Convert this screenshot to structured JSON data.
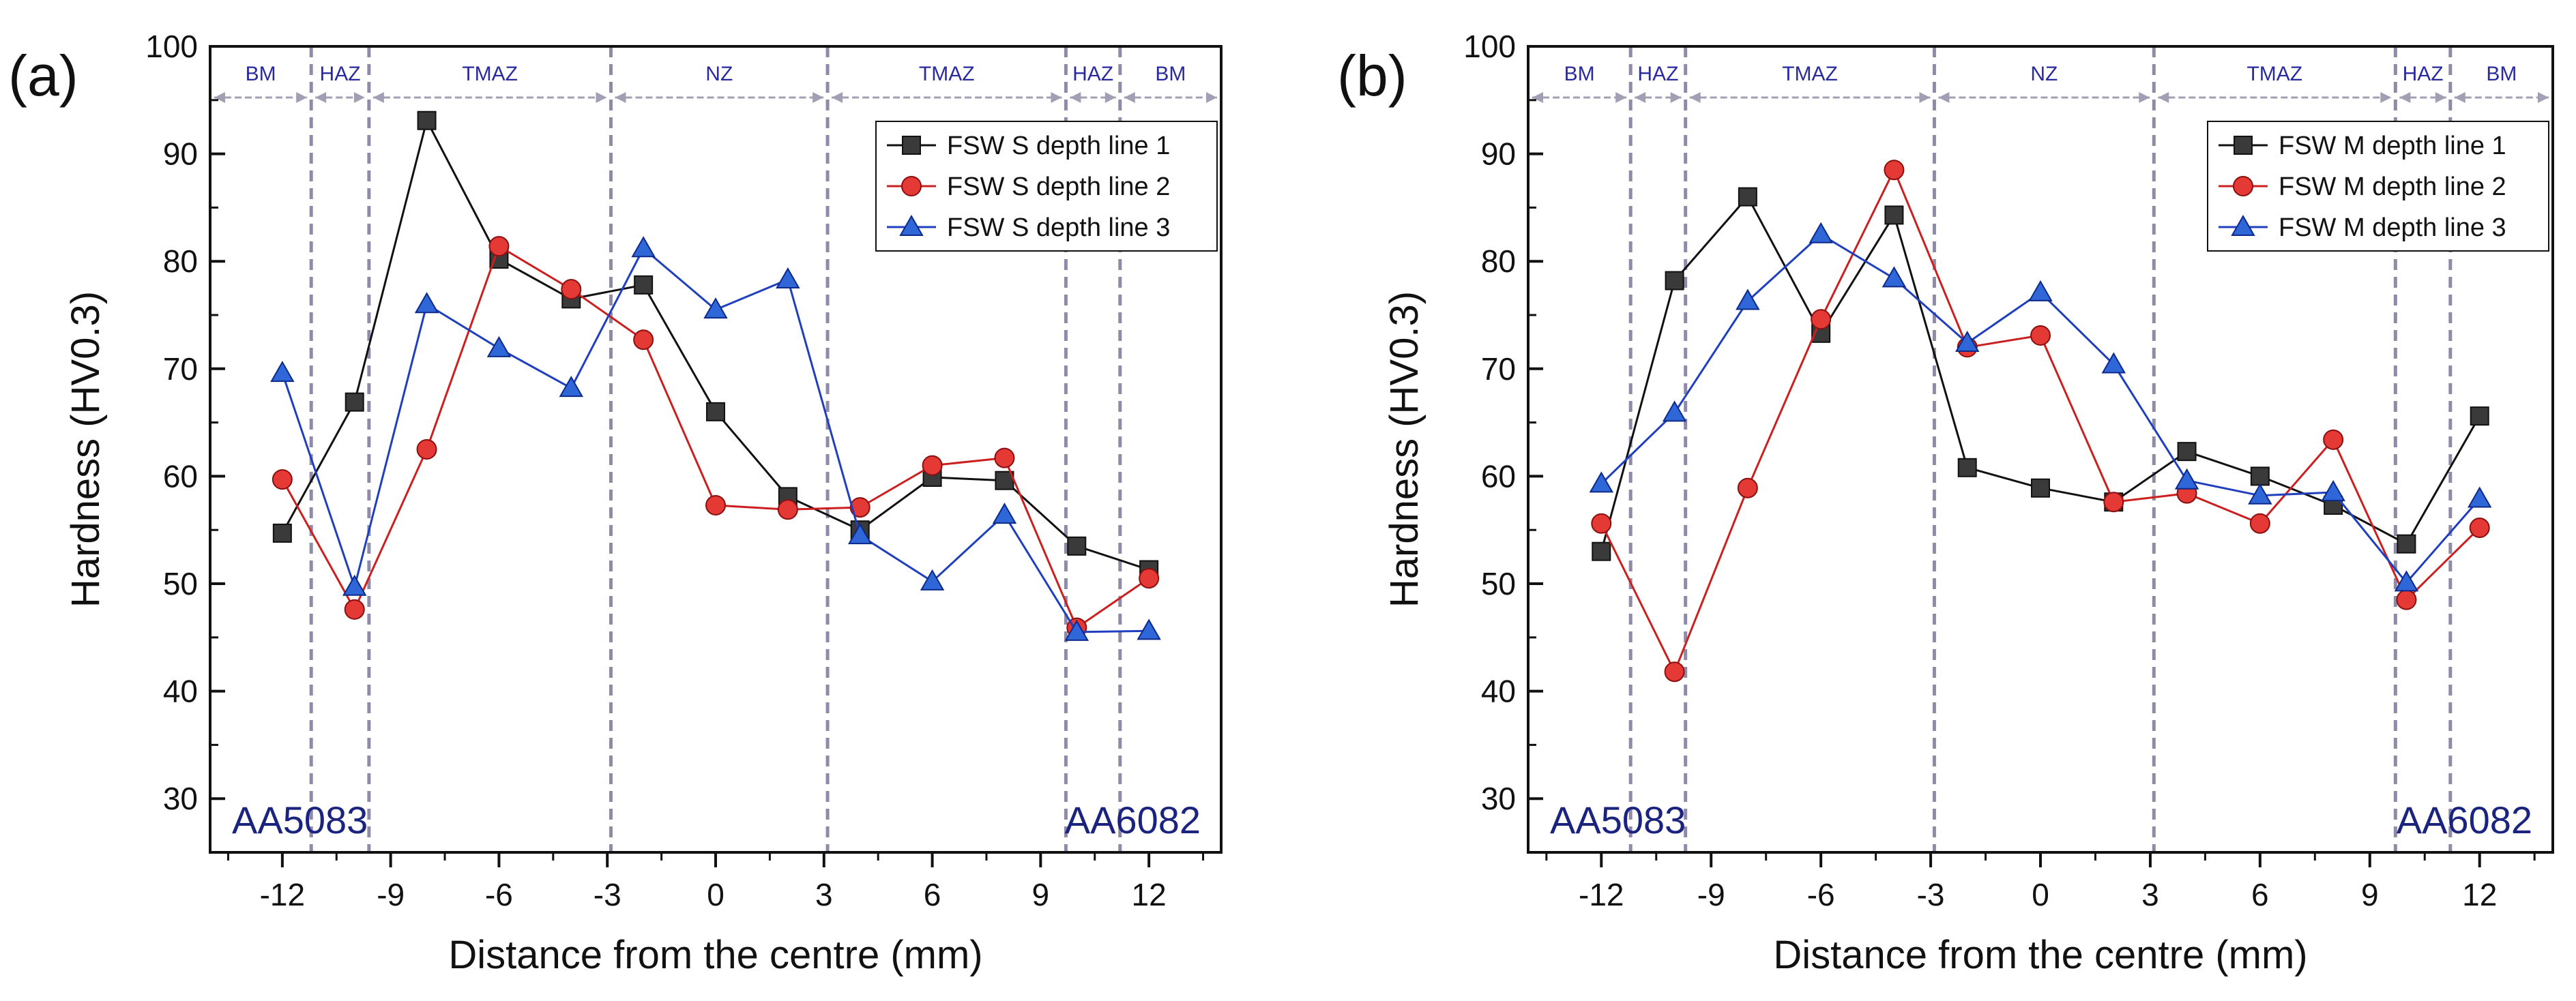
{
  "chart_data": [
    {
      "type": "line",
      "panel_label": "(a)",
      "xlabel": "Distance from the centre (mm)",
      "ylabel": "Hardness (HV0.3)",
      "xlim": [
        -14,
        14
      ],
      "ylim": [
        25,
        100
      ],
      "x_ticks": [
        -12,
        -9,
        -6,
        -3,
        0,
        3,
        6,
        9,
        12
      ],
      "x_tick_labels": [
        "-12",
        "-9",
        "-6",
        "-3",
        "0",
        "3",
        "6",
        "9",
        "12"
      ],
      "y_ticks": [
        30,
        40,
        50,
        60,
        70,
        80,
        90,
        100
      ],
      "y_tick_labels": [
        "30",
        "40",
        "50",
        "60",
        "70",
        "80",
        "90",
        "100"
      ],
      "legend_position": "top-right",
      "zone_boundaries": [
        -11.2,
        -9.6,
        -2.9,
        3.1,
        9.7,
        11.2
      ],
      "zones": [
        {
          "label": "BM",
          "from": -14,
          "to": -11.2
        },
        {
          "label": "HAZ",
          "from": -11.2,
          "to": -9.6
        },
        {
          "label": "TMAZ",
          "from": -9.6,
          "to": -2.9
        },
        {
          "label": "NZ",
          "from": -2.9,
          "to": 3.1
        },
        {
          "label": "TMAZ",
          "from": 3.1,
          "to": 9.7
        },
        {
          "label": "HAZ",
          "from": 9.7,
          "to": 11.2
        },
        {
          "label": "BM",
          "from": 11.2,
          "to": 14
        }
      ],
      "annotations": [
        {
          "text": "AA5083",
          "side": "left"
        },
        {
          "text": "AA6082",
          "side": "right"
        }
      ],
      "x": [
        -12,
        -10,
        -8,
        -6,
        -4,
        -2,
        0,
        2,
        4,
        6,
        8,
        10,
        12
      ],
      "series": [
        {
          "name": "FSW S depth line 1",
          "marker": "square",
          "color": "#111111",
          "fill": "#3a3a3a",
          "values": [
            54.7,
            66.9,
            93.1,
            80.2,
            76.5,
            77.8,
            66.0,
            58.1,
            55.0,
            59.9,
            59.6,
            53.5,
            51.3
          ]
        },
        {
          "name": "FSW S depth line 2",
          "marker": "circle",
          "color": "#cc1f1f",
          "fill": "#e53935",
          "values": [
            59.7,
            47.6,
            62.5,
            81.4,
            77.4,
            72.7,
            57.3,
            56.9,
            57.1,
            61.0,
            61.7,
            45.9,
            50.5
          ]
        },
        {
          "name": "FSW S depth line 3",
          "marker": "triangle",
          "color": "#1f3fbf",
          "fill": "#2f66d8",
          "values": [
            69.6,
            49.7,
            76.0,
            71.9,
            68.2,
            81.2,
            75.5,
            78.3,
            54.5,
            50.2,
            56.4,
            45.5,
            45.6
          ]
        }
      ]
    },
    {
      "type": "line",
      "panel_label": "(b)",
      "xlabel": "Distance from the centre (mm)",
      "ylabel": "Hardness (HV0.3)",
      "xlim": [
        -14,
        14
      ],
      "ylim": [
        25,
        100
      ],
      "x_ticks": [
        -12,
        -9,
        -6,
        -3,
        0,
        3,
        6,
        9,
        12
      ],
      "x_tick_labels": [
        "-12",
        "-9",
        "-6",
        "-3",
        "0",
        "3",
        "6",
        "9",
        "12"
      ],
      "y_ticks": [
        30,
        40,
        50,
        60,
        70,
        80,
        90,
        100
      ],
      "y_tick_labels": [
        "30",
        "40",
        "50",
        "60",
        "70",
        "80",
        "90",
        "100"
      ],
      "legend_position": "top-right",
      "zone_boundaries": [
        -11.2,
        -9.7,
        -2.9,
        3.1,
        9.7,
        11.2
      ],
      "zones": [
        {
          "label": "BM",
          "from": -14,
          "to": -11.2
        },
        {
          "label": "HAZ",
          "from": -11.2,
          "to": -9.7
        },
        {
          "label": "TMAZ",
          "from": -9.7,
          "to": -2.9
        },
        {
          "label": "NZ",
          "from": -2.9,
          "to": 3.1
        },
        {
          "label": "TMAZ",
          "from": 3.1,
          "to": 9.7
        },
        {
          "label": "HAZ",
          "from": 9.7,
          "to": 11.2
        },
        {
          "label": "BM",
          "from": 11.2,
          "to": 14
        }
      ],
      "annotations": [
        {
          "text": "AA5083",
          "side": "left"
        },
        {
          "text": "AA6082",
          "side": "right"
        }
      ],
      "x": [
        -12,
        -10,
        -8,
        -6,
        -4,
        -2,
        0,
        2,
        4,
        6,
        8,
        10,
        12
      ],
      "series": [
        {
          "name": "FSW M depth line 1",
          "marker": "square",
          "color": "#111111",
          "fill": "#3a3a3a",
          "values": [
            53.0,
            78.2,
            86.0,
            73.3,
            84.3,
            60.8,
            58.9,
            57.6,
            62.3,
            60.0,
            57.3,
            53.7,
            65.6
          ]
        },
        {
          "name": "FSW M depth line 2",
          "marker": "circle",
          "color": "#cc1f1f",
          "fill": "#e53935",
          "values": [
            55.6,
            41.8,
            58.9,
            74.6,
            88.5,
            72.0,
            73.1,
            57.6,
            58.4,
            55.6,
            63.4,
            48.5,
            55.2
          ]
        },
        {
          "name": "FSW M depth line 3",
          "marker": "triangle",
          "color": "#1f3fbf",
          "fill": "#2f66d8",
          "values": [
            59.3,
            65.9,
            76.3,
            82.5,
            78.4,
            72.4,
            77.1,
            70.4,
            59.6,
            58.2,
            58.5,
            50.1,
            57.9
          ]
        }
      ]
    }
  ]
}
